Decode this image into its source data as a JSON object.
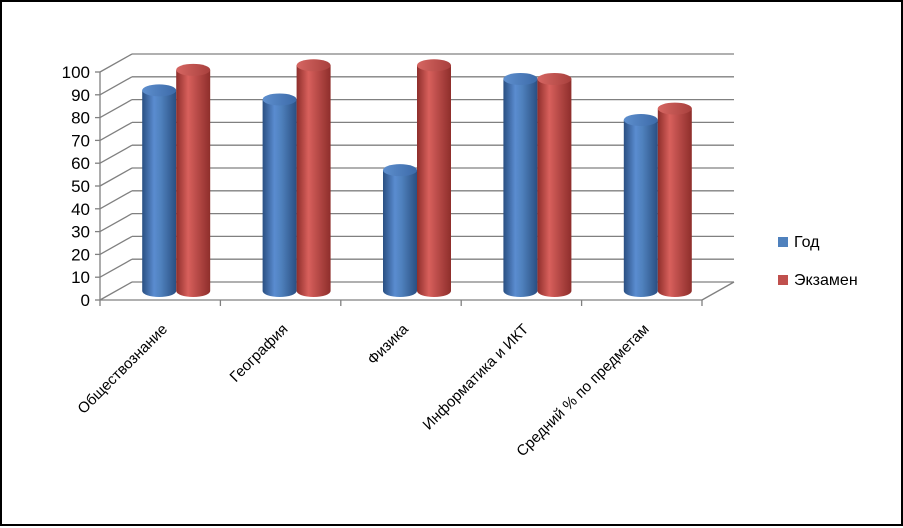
{
  "chart_data": {
    "type": "bar",
    "categories": [
      "Обществознание",
      "География",
      "Физика",
      "Информатика и ИКТ",
      "Средний % по предметам"
    ],
    "series": [
      {
        "name": "Год",
        "values": [
          88,
          84,
          53,
          93,
          75
        ],
        "color": "#4F81BD"
      },
      {
        "name": "Экзамен",
        "values": [
          97,
          99,
          99,
          93,
          80
        ],
        "color": "#C0504D"
      }
    ],
    "ylim": [
      0,
      100
    ],
    "yticks": [
      0,
      10,
      20,
      30,
      40,
      50,
      60,
      70,
      80,
      90,
      100
    ],
    "grid": true,
    "legend_position": "right"
  }
}
